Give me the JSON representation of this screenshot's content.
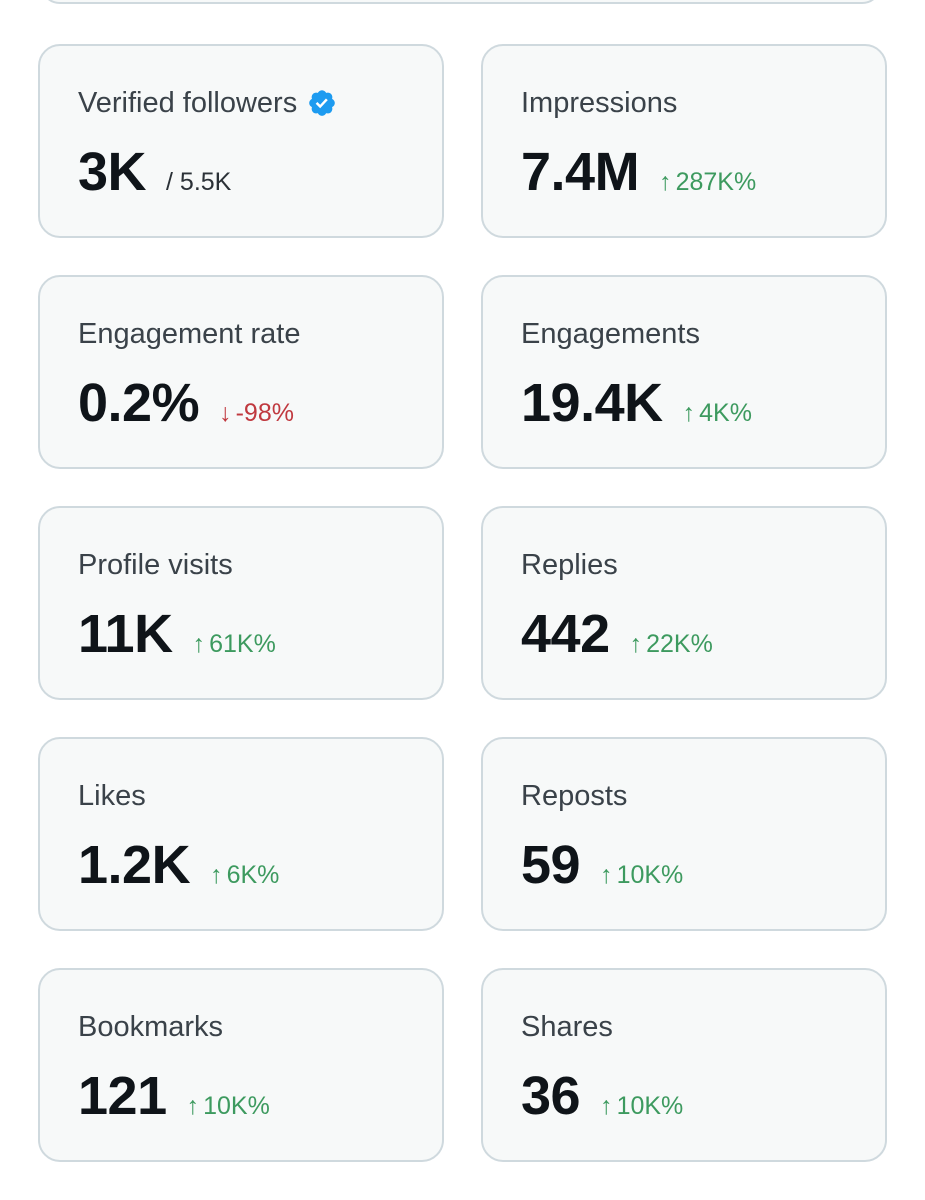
{
  "colors": {
    "card_bg": "#f7f9f9",
    "card_border": "#cfd9de",
    "positive": "#3d9a5f",
    "negative": "#c0393f",
    "verified": "#1d9bf0"
  },
  "cards": [
    {
      "label": "Verified followers",
      "value": "3K",
      "delta": "/ 5.5K",
      "direction": "neutral",
      "arrow": "",
      "badge": "verified-badge-icon"
    },
    {
      "label": "Impressions",
      "value": "7.4M",
      "delta": "287K%",
      "direction": "up",
      "arrow": "↑"
    },
    {
      "label": "Engagement rate",
      "value": "0.2%",
      "delta": "-98%",
      "direction": "down",
      "arrow": "↓"
    },
    {
      "label": "Engagements",
      "value": "19.4K",
      "delta": "4K%",
      "direction": "up",
      "arrow": "↑"
    },
    {
      "label": "Profile visits",
      "value": "11K",
      "delta": "61K%",
      "direction": "up",
      "arrow": "↑"
    },
    {
      "label": "Replies",
      "value": "442",
      "delta": "22K%",
      "direction": "up",
      "arrow": "↑"
    },
    {
      "label": "Likes",
      "value": "1.2K",
      "delta": "6K%",
      "direction": "up",
      "arrow": "↑"
    },
    {
      "label": "Reposts",
      "value": "59",
      "delta": "10K%",
      "direction": "up",
      "arrow": "↑"
    },
    {
      "label": "Bookmarks",
      "value": "121",
      "delta": "10K%",
      "direction": "up",
      "arrow": "↑"
    },
    {
      "label": "Shares",
      "value": "36",
      "delta": "10K%",
      "direction": "up",
      "arrow": "↑"
    }
  ]
}
